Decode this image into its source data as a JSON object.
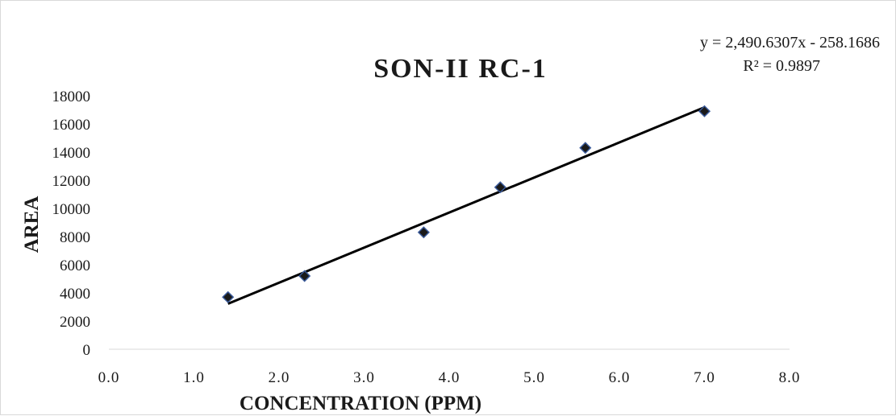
{
  "chart_data": {
    "type": "scatter",
    "title": "SON-II RC-1",
    "xlabel": "CONCENTRATION (PPM)",
    "ylabel": "AREA",
    "xlim": [
      0.0,
      8.0
    ],
    "ylim": [
      0,
      18000
    ],
    "x_ticks": [
      "0.0",
      "1.0",
      "2.0",
      "3.0",
      "4.0",
      "5.0",
      "6.0",
      "7.0",
      "8.0"
    ],
    "y_ticks": [
      "0",
      "2000",
      "4000",
      "6000",
      "8000",
      "10000",
      "12000",
      "14000",
      "16000",
      "18000"
    ],
    "series": [
      {
        "marker": "diamond",
        "color": "#1a1a1a",
        "marker_edge": "#3a5a9a",
        "points": [
          {
            "x": 1.4,
            "y": 3700
          },
          {
            "x": 2.3,
            "y": 5200
          },
          {
            "x": 3.7,
            "y": 8300
          },
          {
            "x": 4.6,
            "y": 11500
          },
          {
            "x": 5.6,
            "y": 14300
          },
          {
            "x": 7.0,
            "y": 16900
          }
        ]
      }
    ],
    "trendline": {
      "type": "linear",
      "slope": 2490.6307,
      "intercept": -258.1686,
      "x_range": [
        1.4,
        7.0
      ],
      "color": "#000000",
      "equation_text": "y = 2,490.6307x - 258.1686",
      "r2_text": "R² = 0.9897"
    },
    "grid": false,
    "legend": "none"
  }
}
